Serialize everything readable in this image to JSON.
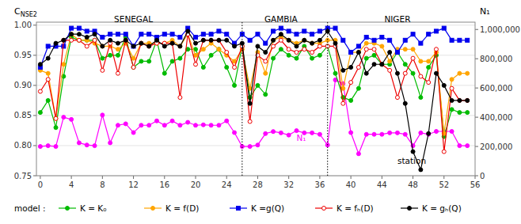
{
  "chart_data": {
    "type": "line",
    "y_label": "CNSE2",
    "y2_label": "N₁",
    "legend_title": "model :",
    "legend": "bottom",
    "grid": true,
    "x": [
      0,
      1,
      2,
      3,
      4,
      5,
      6,
      7,
      8,
      9,
      10,
      11,
      12,
      13,
      14,
      15,
      16,
      17,
      18,
      19,
      20,
      21,
      22,
      23,
      24,
      25,
      26,
      27,
      28,
      29,
      30,
      31,
      32,
      33,
      34,
      35,
      36,
      37,
      38,
      39,
      40,
      41,
      42,
      43,
      44,
      45,
      46,
      47,
      48,
      49,
      50,
      51,
      52,
      53,
      54,
      55
    ],
    "xlim": [
      -0.5,
      56
    ],
    "xticks": [
      0,
      4,
      8,
      12,
      16,
      20,
      24,
      28,
      32,
      36,
      40,
      44,
      48,
      52,
      56
    ],
    "ylim": [
      0.75,
      1.005
    ],
    "yticks": [
      0.75,
      {
        "value": 0.8,
        "label": "0.80"
      },
      0.85,
      {
        "value": 0.9,
        "label": "0.90"
      },
      0.95,
      {
        "value": 1.0,
        "label": "1.00"
      }
    ],
    "y2lim": [
      0,
      1050000
    ],
    "y2ticks": [
      0,
      {
        "value": 200000,
        "label": "200,000"
      },
      {
        "value": 400000,
        "label": "400,000"
      },
      {
        "value": 600000,
        "label": "600,000"
      },
      {
        "value": 800000,
        "label": "800,000"
      },
      {
        "value": 1000000,
        "label": "1,000,000"
      }
    ],
    "vlines": [
      26,
      37
    ],
    "series": [
      {
        "name": "K = K₀",
        "color": "#00BB00",
        "marker": "circle",
        "values": [
          0.855,
          0.875,
          0.83,
          0.915,
          0.98,
          0.975,
          0.975,
          0.975,
          0.945,
          0.95,
          0.95,
          0.98,
          0.93,
          0.94,
          0.94,
          0.975,
          0.92,
          0.94,
          0.945,
          0.96,
          0.96,
          0.93,
          0.95,
          0.96,
          0.93,
          0.9,
          0.965,
          0.88,
          0.9,
          0.885,
          0.945,
          0.96,
          0.95,
          0.945,
          0.965,
          0.945,
          0.95,
          0.965,
          0.92,
          0.88,
          0.875,
          0.895,
          0.945,
          0.95,
          0.935,
          0.935,
          0.955,
          0.935,
          0.92,
          0.88,
          0.93,
          0.95,
          0.815,
          0.86,
          0.855,
          0.855
        ]
      },
      {
        "name": "K = f(D)",
        "color": "#FFA500",
        "marker": "circle",
        "values": [
          0.925,
          0.92,
          0.845,
          0.935,
          0.985,
          0.975,
          0.975,
          0.97,
          0.965,
          0.965,
          0.96,
          0.97,
          0.945,
          0.97,
          0.97,
          0.97,
          0.97,
          0.975,
          0.965,
          0.985,
          0.95,
          0.96,
          0.97,
          0.96,
          0.95,
          0.94,
          0.96,
          0.895,
          0.955,
          0.92,
          0.975,
          0.98,
          0.975,
          0.97,
          0.975,
          0.97,
          0.97,
          0.975,
          0.975,
          0.895,
          0.955,
          0.955,
          0.97,
          0.97,
          0.965,
          0.94,
          0.96,
          0.96,
          0.96,
          0.94,
          0.94,
          0.955,
          0.82,
          0.91,
          0.92,
          0.92
        ]
      },
      {
        "name": "K =g(Q)",
        "color": "#0000EE",
        "marker": "square",
        "values": [
          0.93,
          0.965,
          0.965,
          0.965,
          0.995,
          0.995,
          0.99,
          0.99,
          0.98,
          0.985,
          0.985,
          0.985,
          0.965,
          0.985,
          0.985,
          0.98,
          0.985,
          0.985,
          0.98,
          0.995,
          0.98,
          0.985,
          0.985,
          0.99,
          0.985,
          0.97,
          0.985,
          0.975,
          0.985,
          0.97,
          0.99,
          0.995,
          0.99,
          0.985,
          0.99,
          0.985,
          0.99,
          0.995,
          0.995,
          0.975,
          0.955,
          0.965,
          0.98,
          0.975,
          0.98,
          0.975,
          0.955,
          0.975,
          0.985,
          0.97,
          0.985,
          0.99,
          0.995,
          0.975,
          0.975,
          0.975
        ]
      },
      {
        "name": "K = fₕ(D)",
        "color": "#EE0000",
        "marker": "open-circle",
        "values": [
          0.89,
          0.91,
          0.845,
          0.975,
          0.975,
          0.975,
          0.965,
          0.975,
          0.925,
          0.97,
          0.92,
          0.975,
          0.93,
          0.97,
          0.965,
          0.97,
          0.97,
          0.97,
          0.88,
          0.985,
          0.935,
          0.975,
          0.975,
          0.975,
          0.955,
          0.93,
          0.965,
          0.84,
          0.95,
          0.94,
          0.965,
          0.975,
          0.96,
          0.955,
          0.96,
          0.955,
          0.965,
          0.965,
          0.965,
          0.87,
          0.905,
          0.93,
          0.96,
          0.96,
          0.935,
          0.925,
          0.88,
          0.92,
          0.945,
          0.915,
          0.905,
          0.96,
          0.79,
          0.895,
          0.875,
          0.875
        ]
      },
      {
        "name": "K = gₕ(Q)",
        "color": "#000000",
        "marker": "circle",
        "values": [
          0.935,
          0.945,
          0.97,
          0.975,
          0.985,
          0.985,
          0.98,
          0.985,
          0.965,
          0.975,
          0.97,
          0.975,
          0.965,
          0.97,
          0.965,
          0.975,
          0.965,
          0.97,
          0.965,
          0.99,
          0.97,
          0.975,
          0.975,
          0.975,
          0.975,
          0.965,
          0.97,
          0.87,
          0.965,
          0.955,
          0.975,
          0.985,
          0.975,
          0.965,
          0.975,
          0.97,
          0.975,
          0.99,
          0.97,
          0.925,
          0.93,
          0.955,
          0.92,
          0.935,
          0.935,
          0.955,
          0.92,
          0.87,
          0.79,
          0.76,
          0.82,
          0.92,
          0.9,
          0.875,
          0.875,
          0.875
        ]
      },
      {
        "color": "#FF00FF",
        "marker": "circle",
        "axis": "y2",
        "values": [
          200000,
          205000,
          200000,
          400000,
          385000,
          225000,
          210000,
          205000,
          415000,
          225000,
          345000,
          355000,
          295000,
          345000,
          345000,
          375000,
          345000,
          375000,
          345000,
          365000,
          345000,
          348000,
          345000,
          345000,
          375000,
          295000,
          200000,
          200000,
          210000,
          288000,
          302000,
          293000,
          278000,
          308000,
          293000,
          293000,
          283000,
          210000,
          655000,
          630000,
          295000,
          150000,
          283000,
          283000,
          283000,
          293000,
          293000,
          283000,
          205000,
          293000,
          283000,
          303000,
          303000,
          303000,
          205000,
          205000
        ]
      }
    ],
    "annotations": [
      {
        "text": "SENEGAL",
        "x": 12,
        "y": 1.002
      },
      {
        "text": "GAMBIA",
        "x": 31,
        "y": 1.002
      },
      {
        "text": "NIGER",
        "x": 46,
        "y": 1.002
      },
      {
        "text": "N₁",
        "x": 33,
        "y": 0.808,
        "color": "#FF00FF"
      },
      {
        "text": "station",
        "x": 46,
        "y": 0.77
      }
    ]
  }
}
